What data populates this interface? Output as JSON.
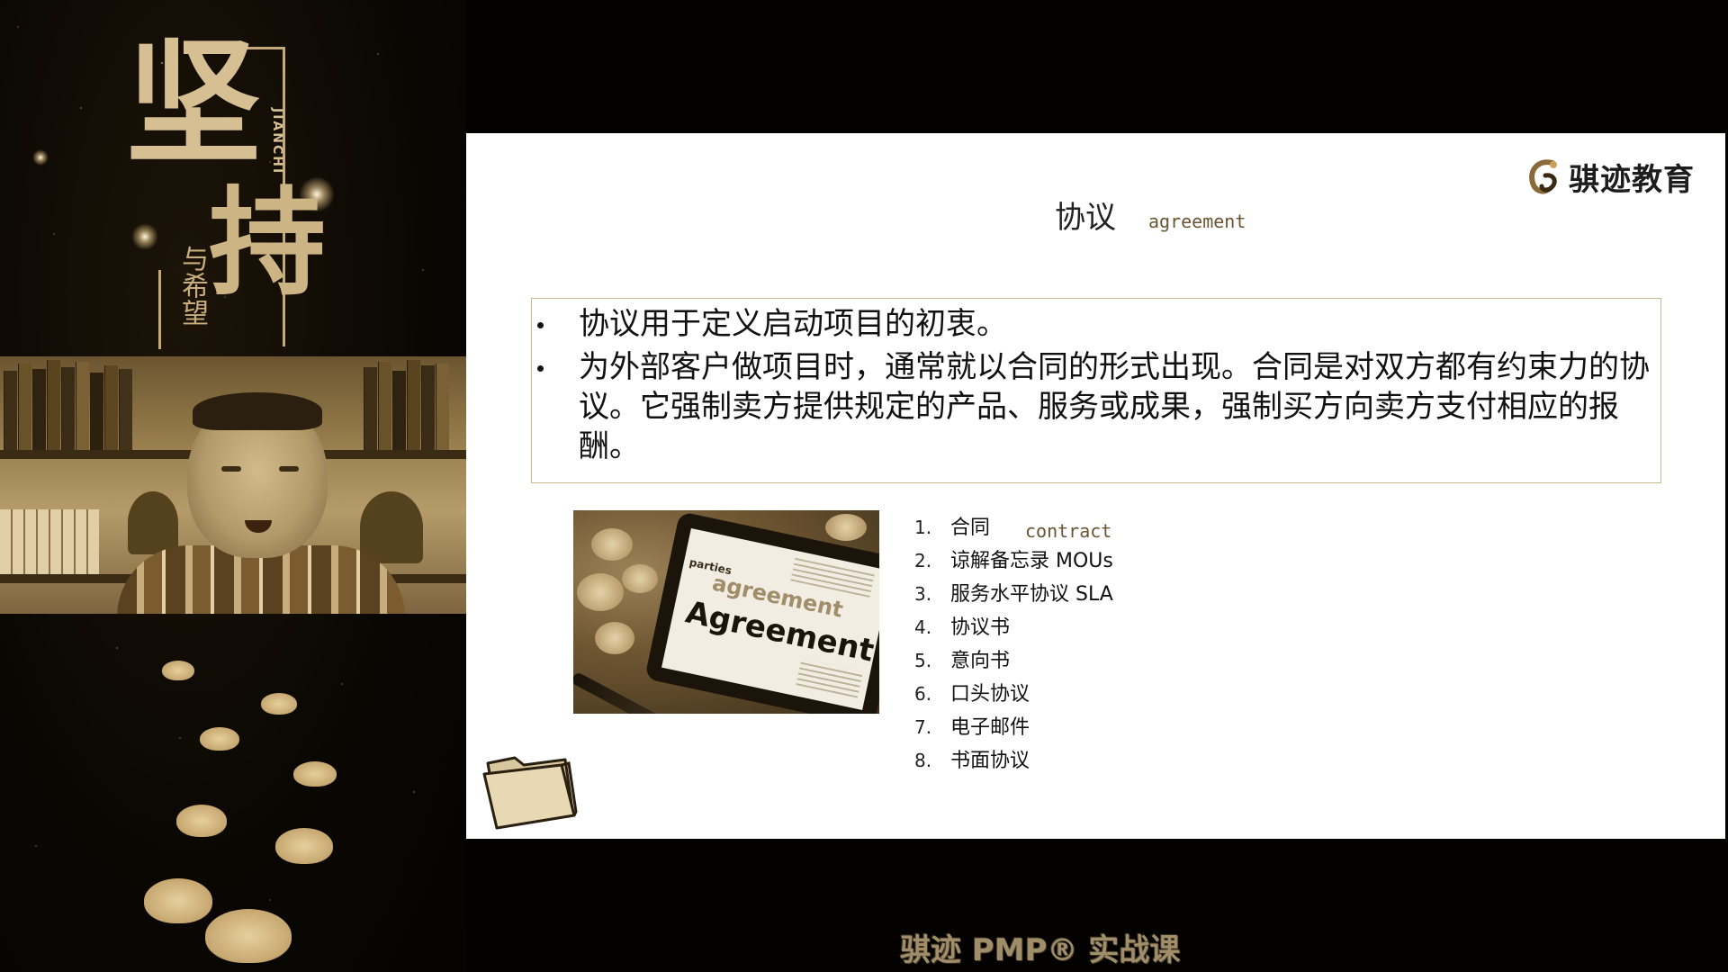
{
  "poster": {
    "title_1": "坚",
    "title_2": "持",
    "subtitle": "与希望",
    "pinyin": "JIANCHI"
  },
  "slide": {
    "logo_text": "骐迹教育",
    "title": "协议",
    "title_en": "agreement",
    "bullets": [
      "协议用于定义启动项目的初衷。",
      "为外部客户做项目时，通常就以合同的形式出现。合同是对双方都有约束力的协议。它强制卖方提供规定的产品、服务或成果，强制买方向卖方支付相应的报酬。"
    ],
    "photo_words": {
      "main": "Agreement",
      "secondary": "agreement",
      "small": "parties"
    },
    "list": [
      {
        "num": "1.",
        "label": "合同",
        "en": "contract"
      },
      {
        "num": "2.",
        "label": "谅解备忘录 MOUs"
      },
      {
        "num": "3.",
        "label": "服务水平协议 SLA"
      },
      {
        "num": "4.",
        "label": "协议书"
      },
      {
        "num": "5.",
        "label": "意向书"
      },
      {
        "num": "6.",
        "label": "口头协议"
      },
      {
        "num": "7.",
        "label": "电子邮件"
      },
      {
        "num": "8.",
        "label": "书面协议"
      }
    ]
  },
  "footer": {
    "brand": "骐迹 PMP® 实战课"
  },
  "colors": {
    "poster_gold": "#d6bf92",
    "slide_bg": "#ffffff",
    "box_border": "#c8b48e",
    "accent_brown": "#6a5532"
  }
}
